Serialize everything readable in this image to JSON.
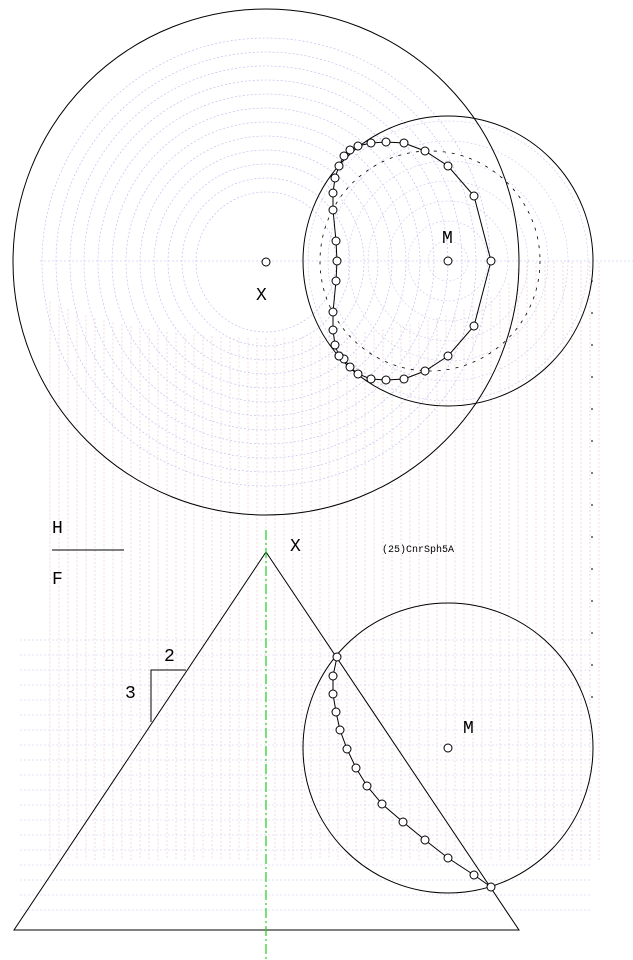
{
  "labels": {
    "top_center": "X",
    "top_sphere": "M",
    "front_apex": "X",
    "front_sphere": "M",
    "plane_top": "H",
    "plane_bottom": "F",
    "slope_run": "2",
    "slope_rise": "3",
    "drawing_id": "(25)CnrSph5A"
  }
}
